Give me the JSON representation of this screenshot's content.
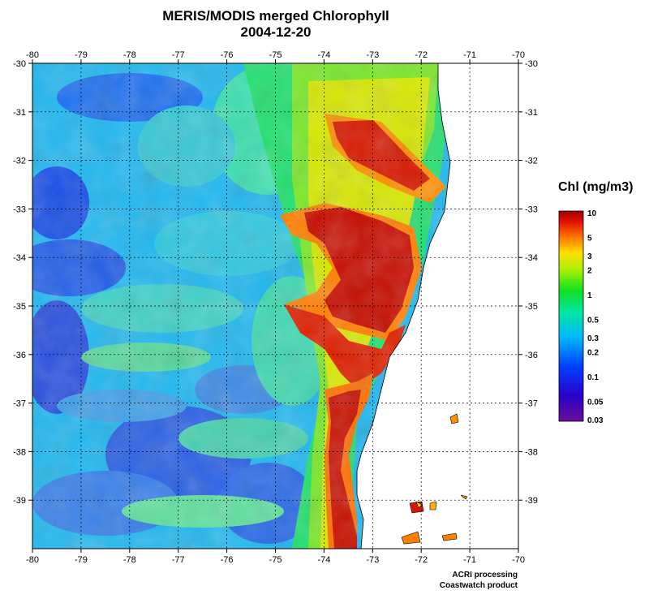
{
  "title": "MERIS/MODIS merged Chlorophyll",
  "date": "2004-12-20",
  "longitude_ticks": [
    "-80",
    "-79",
    "-78",
    "-77",
    "-76",
    "-75",
    "-74",
    "-73",
    "-72",
    "-71",
    "-70"
  ],
  "latitude_ticks": [
    "-30",
    "-31",
    "-32",
    "-33",
    "-34",
    "-35",
    "-36",
    "-37",
    "-38",
    "-39"
  ],
  "lon_range": [
    -80,
    -70
  ],
  "lat_range": [
    -40,
    -30
  ],
  "legend": {
    "title": "Chl (mg/m3)",
    "labels": [
      "10",
      "5",
      "3",
      "2",
      "1",
      "0.5",
      "0.3",
      "0.2",
      "0.1",
      "0.05",
      "0.03"
    ],
    "scale": "log"
  },
  "credits": [
    "ACRI processing",
    "Coastwatch product"
  ],
  "colors": {
    "land": "#ffffff",
    "gridline": "#000000"
  }
}
